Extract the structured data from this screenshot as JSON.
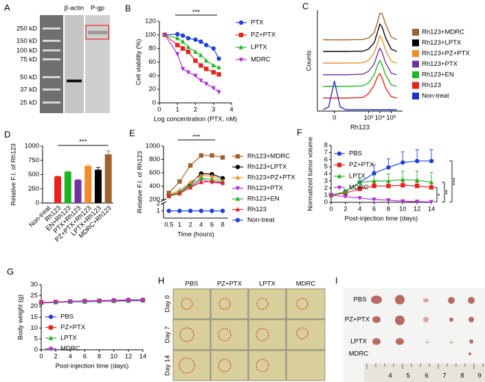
{
  "gel": {
    "panel": "A",
    "lanes": [
      "β-actin",
      "P-gp"
    ],
    "markers": [
      "250 kD",
      "150 kD",
      "100 kD",
      "75 kD",
      "50 kD",
      "37 kD",
      "25 kD"
    ]
  },
  "chart_data": [
    {
      "type": "line",
      "panel": "B",
      "xlabel": "Log concentration (PTX, nM)",
      "ylabel": "Cell viability (%)",
      "x": [
        0.3,
        1,
        1.3,
        1.6,
        2,
        2.3,
        2.6,
        3,
        3.3
      ],
      "xlim": [
        0,
        4
      ],
      "xticks": [
        0,
        1,
        2,
        3,
        4
      ],
      "ylim": [
        0,
        120
      ],
      "yticks": [
        0,
        20,
        40,
        60,
        80,
        100,
        120
      ],
      "annotation": "***",
      "legend": "right",
      "series": [
        {
          "name": "PTX",
          "color": "#1f3fe0",
          "marker": "circle",
          "values": [
            100,
            101,
            99,
            95,
            93,
            90,
            85,
            80,
            65
          ]
        },
        {
          "name": "PZ+PTX",
          "color": "#e8221c",
          "marker": "square",
          "values": [
            100,
            85,
            80,
            75,
            62,
            55,
            50,
            45,
            42
          ]
        },
        {
          "name": "LPTX",
          "color": "#1fb51f",
          "marker": "triangle",
          "values": [
            100,
            95,
            90,
            82,
            75,
            70,
            62,
            55,
            52
          ]
        },
        {
          "name": "MDRC",
          "color": "#b02fd6",
          "marker": "down",
          "values": [
            100,
            72,
            50,
            45,
            40,
            33,
            28,
            22,
            16
          ]
        }
      ]
    },
    {
      "type": "ridge",
      "panel": "C",
      "xlabel": "Rh123",
      "ylabel": "Counts",
      "x": [
        -1,
        -0.5,
        0,
        0.5,
        1,
        2.5,
        3,
        3.5,
        3.8,
        4,
        4.2,
        4.5,
        5,
        5.5
      ],
      "xlim": [
        -1.5,
        6
      ],
      "xticks": [
        0,
        {
          "value": 3,
          "label": "10³"
        },
        {
          "value": 4,
          "label": "10⁴"
        },
        {
          "value": 5,
          "label": "10⁵"
        }
      ],
      "legend": "right",
      "series": [
        {
          "name": "Rh123+MDRC",
          "color": "#a0622d",
          "values": [
            0,
            0,
            0,
            0,
            0,
            1,
            6,
            25,
            62,
            92,
            90,
            55,
            10,
            0
          ]
        },
        {
          "name": "Rh123+LPTX",
          "color": "#000000",
          "values": [
            0,
            0,
            0,
            0,
            0,
            1,
            8,
            30,
            68,
            95,
            85,
            48,
            8,
            0
          ]
        },
        {
          "name": "Rh123+PZ+PTX",
          "color": "#f28c28",
          "values": [
            0,
            0,
            0,
            0,
            0,
            1,
            10,
            35,
            70,
            95,
            82,
            45,
            7,
            0
          ]
        },
        {
          "name": "Rh123+PTX",
          "color": "#7030a0",
          "values": [
            0,
            0,
            0,
            0,
            0,
            2,
            12,
            38,
            72,
            92,
            78,
            42,
            6,
            0
          ]
        },
        {
          "name": "Rh123+EN",
          "color": "#1fb51f",
          "values": [
            0,
            0,
            0,
            0,
            0,
            2,
            12,
            40,
            75,
            90,
            75,
            40,
            6,
            0
          ]
        },
        {
          "name": "Rh123",
          "color": "#e8221c",
          "values": [
            0,
            0,
            0,
            0,
            0,
            2,
            15,
            45,
            75,
            85,
            70,
            35,
            5,
            0
          ]
        },
        {
          "name": "Non-treat",
          "color": "#1f2fd0",
          "values": [
            0,
            10,
            100,
            10,
            0,
            0,
            0,
            0,
            0,
            0,
            0,
            0,
            0,
            0
          ]
        }
      ]
    },
    {
      "type": "bar",
      "panel": "D",
      "ylabel": "Relative F.I. of Rh123",
      "categories": [
        "Non-treat",
        "Rh123",
        "EN+Rh123",
        "PTX+Rh123",
        "PZ+PTX+Rh123",
        "LPTX+Rh123",
        "MDRC+Rh123"
      ],
      "values": [
        5,
        465,
        550,
        405,
        650,
        585,
        855
      ],
      "errors": [
        0,
        5,
        5,
        5,
        15,
        40,
        60
      ],
      "colors": [
        "#1f2fd0",
        "#e8221c",
        "#1fb51f",
        "#7030a0",
        "#f28c28",
        "#000000",
        "#a0622d"
      ],
      "ylim": [
        0,
        1000
      ],
      "yticks": [
        0,
        250,
        500,
        750,
        1000
      ],
      "annotation": "***"
    },
    {
      "type": "line",
      "panel": "E",
      "xlabel": "Time (hours)",
      "ylabel": "Relative F.I. of Rh123",
      "categories": [
        "0.5",
        "1",
        "2",
        "4",
        "6",
        "8"
      ],
      "ylim": [
        200,
        1000
      ],
      "yticks": [
        200,
        400,
        600,
        800,
        1000
      ],
      "ylim_lower": [
        0,
        2
      ],
      "yticks_lower": [
        1,
        2
      ],
      "annotation": "***",
      "legend": "right",
      "series": [
        {
          "name": "Rh123+MDRC",
          "color": "#a0622d",
          "marker": "square",
          "values": [
            300,
            470,
            710,
            860,
            860,
            830
          ]
        },
        {
          "name": "Rh123+LPTX",
          "color": "#000000",
          "marker": "circle",
          "values": [
            260,
            310,
            430,
            590,
            580,
            520
          ]
        },
        {
          "name": "Rh123+PZ+PTX",
          "color": "#f28c28",
          "marker": "triangle",
          "values": [
            270,
            340,
            460,
            560,
            550,
            480
          ]
        },
        {
          "name": "Rh123+PTX",
          "color": "#b02fd6",
          "marker": "down",
          "values": [
            250,
            300,
            380,
            500,
            460,
            440
          ]
        },
        {
          "name": "Rh123+EN",
          "color": "#1fb51f",
          "marker": "triangle",
          "values": [
            260,
            310,
            410,
            520,
            500,
            460
          ]
        },
        {
          "name": "Rh123",
          "color": "#e8221c",
          "marker": "triangle",
          "values": [
            250,
            290,
            380,
            460,
            470,
            450
          ]
        },
        {
          "name": "Non-treat",
          "color": "#1f3fe0",
          "marker": "circle",
          "axis": "lower",
          "values": [
            1,
            1,
            1,
            1,
            1,
            1
          ]
        }
      ]
    },
    {
      "type": "line",
      "panel": "F",
      "xlabel": "Post-injection time (days)",
      "ylabel": "Normalized tumor volume",
      "x": [
        0,
        2,
        4,
        6,
        8,
        10,
        12,
        14
      ],
      "xlim": [
        0,
        14
      ],
      "xticks": [
        0,
        2,
        4,
        6,
        8,
        10,
        12,
        14
      ],
      "ylim": [
        0,
        8
      ],
      "yticks": [
        0,
        1,
        2,
        3,
        4,
        5,
        6,
        7,
        8
      ],
      "legend": "upper-left",
      "significance": [
        "*",
        "**",
        "***"
      ],
      "series": [
        {
          "name": "PBS",
          "color": "#1f3fe0",
          "marker": "circle",
          "values": [
            1,
            1.5,
            2.8,
            4.1,
            4.9,
            5.6,
            5.8,
            5.8
          ],
          "errors": [
            0.1,
            0.3,
            0.6,
            1.2,
            1.2,
            1.5,
            1.6,
            1.6
          ]
        },
        {
          "name": "PZ+PTX",
          "color": "#e8221c",
          "marker": "square",
          "values": [
            1,
            1.3,
            1.9,
            2.3,
            2.3,
            2.4,
            2.3,
            2.1
          ],
          "errors": [
            0.05,
            0.2,
            0.3,
            0.4,
            0.5,
            0.5,
            0.5,
            0.5
          ]
        },
        {
          "name": "LPTX",
          "color": "#1fb51f",
          "marker": "triangle",
          "values": [
            1,
            1.5,
            2.8,
            3.0,
            3.0,
            3.2,
            3.1,
            2.8
          ],
          "errors": [
            0.1,
            0.3,
            0.6,
            0.8,
            1.0,
            1.2,
            1.3,
            1.4
          ]
        },
        {
          "name": "MDRC",
          "color": "#b02fd6",
          "marker": "down",
          "values": [
            1,
            0.8,
            0.6,
            0.4,
            0.3,
            0.15,
            0.1,
            0.05
          ],
          "errors": [
            0.05,
            0.1,
            0.1,
            0.1,
            0.1,
            0.1,
            0.1,
            0.05
          ]
        }
      ]
    },
    {
      "type": "line",
      "panel": "G",
      "xlabel": "Post-injection time (days)",
      "ylabel": "Body weight (g)",
      "x": [
        0,
        2,
        4,
        6,
        8,
        10,
        12,
        14
      ],
      "xlim": [
        0,
        14
      ],
      "xticks": [
        0,
        2,
        4,
        6,
        8,
        10,
        12,
        14
      ],
      "ylim": [
        0,
        30
      ],
      "yticks": [
        0,
        5,
        10,
        15,
        20,
        25,
        30
      ],
      "legend": "lower-left",
      "series": [
        {
          "name": "PBS",
          "color": "#1f3fe0",
          "marker": "circle",
          "values": [
            21.5,
            22,
            22.3,
            22.5,
            22.6,
            22.8,
            23,
            23
          ]
        },
        {
          "name": "PZ+PTX",
          "color": "#e8221c",
          "marker": "square",
          "values": [
            21.8,
            22,
            22.2,
            22.3,
            22.5,
            22.6,
            22.7,
            22.8
          ]
        },
        {
          "name": "LPTX",
          "color": "#1fb51f",
          "marker": "triangle",
          "values": [
            21.5,
            21.8,
            22,
            22.1,
            22.3,
            22.4,
            22.5,
            22.6
          ]
        },
        {
          "name": "MDRC",
          "color": "#b02fd6",
          "marker": "down",
          "values": [
            21.6,
            21.9,
            22.1,
            22.2,
            22.4,
            22.5,
            22.6,
            22.7
          ]
        }
      ]
    }
  ],
  "photos_h": {
    "panel": "H",
    "columns": [
      "PBS",
      "PZ+PTX",
      "LPTX",
      "MDRC"
    ],
    "rows": [
      "Day 0",
      "Day 7",
      "Day 14"
    ]
  },
  "photos_i": {
    "panel": "I",
    "rows": [
      "PBS",
      "PZ+PTX",
      "LPTX",
      "MDRC"
    ],
    "ruler": [
      4,
      5,
      6,
      7,
      8,
      9
    ]
  }
}
